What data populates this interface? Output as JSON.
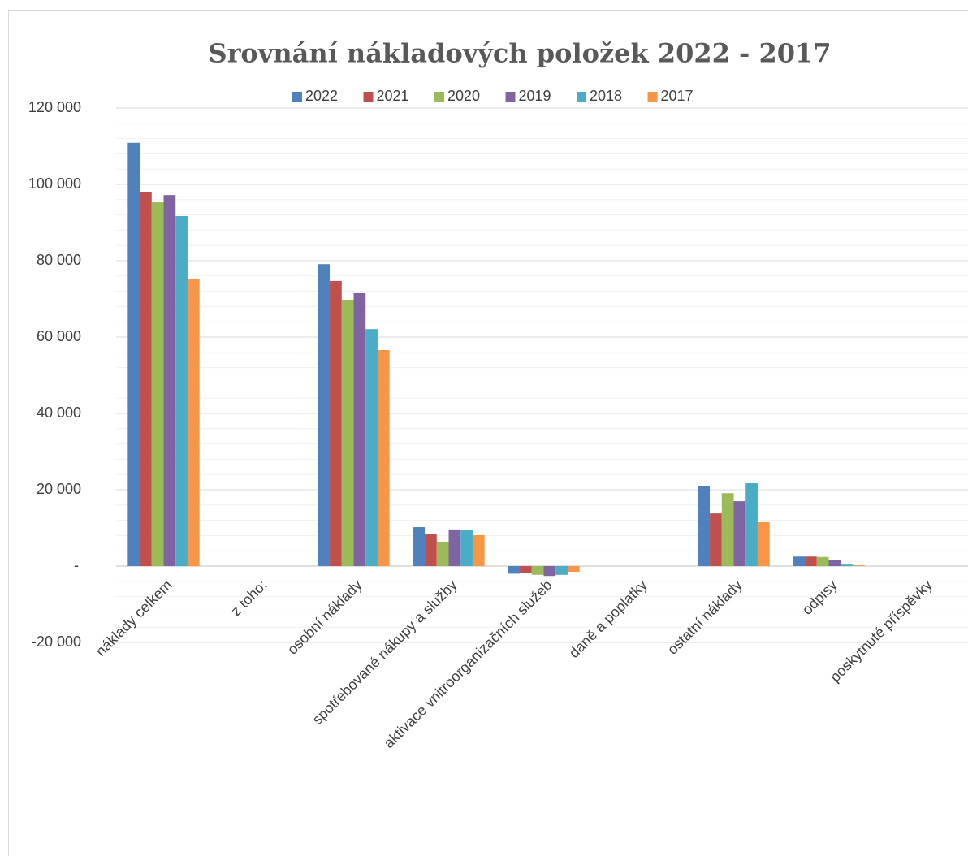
{
  "chart_data": {
    "type": "bar",
    "title": "Srovnání nákladových položek 2022 - 2017",
    "categories": [
      "náklady celkem",
      "z toho:",
      "osobní náklady",
      "spotřebované nákupy a služby",
      "aktivace vnitroorganizačních služeb",
      "daně a poplatky",
      "ostatní náklady",
      "odpisy",
      "poskytnuté příspěvky"
    ],
    "series": [
      {
        "name": "2022",
        "color": "#4f81bd",
        "values": [
          110900,
          null,
          79100,
          10200,
          -2000,
          0,
          20900,
          2500,
          0
        ]
      },
      {
        "name": "2021",
        "color": "#c0504d",
        "values": [
          97900,
          null,
          74700,
          8300,
          -1700,
          0,
          13800,
          2500,
          0
        ]
      },
      {
        "name": "2020",
        "color": "#9bbb59",
        "values": [
          95300,
          null,
          69600,
          6400,
          -2300,
          0,
          19100,
          2400,
          0
        ]
      },
      {
        "name": "2019",
        "color": "#8064a2",
        "values": [
          97200,
          null,
          71500,
          9600,
          -2600,
          0,
          17000,
          1600,
          0
        ]
      },
      {
        "name": "2018",
        "color": "#4bacc6",
        "values": [
          91700,
          null,
          62100,
          9400,
          -2300,
          0,
          21700,
          400,
          0
        ]
      },
      {
        "name": "2017",
        "color": "#f79646",
        "values": [
          75100,
          null,
          56600,
          8100,
          -1500,
          0,
          11500,
          200,
          0
        ]
      }
    ],
    "ylim": [
      -20000,
      120000
    ],
    "yticks": [
      {
        "value": -20000,
        "label": "-20 000"
      },
      {
        "value": 0,
        "label": "-"
      },
      {
        "value": 20000,
        "label": "20 000"
      },
      {
        "value": 40000,
        "label": "40 000"
      },
      {
        "value": 60000,
        "label": "60 000"
      },
      {
        "value": 80000,
        "label": "80 000"
      },
      {
        "value": 100000,
        "label": "100 000"
      },
      {
        "value": 120000,
        "label": "120 000"
      }
    ],
    "minor_yticks": [
      -16000,
      -12000,
      -8000,
      -4000,
      4000,
      8000,
      12000,
      16000,
      24000,
      28000,
      32000,
      36000,
      44000,
      48000,
      52000,
      56000,
      64000,
      68000,
      72000,
      76000,
      84000,
      88000,
      92000,
      96000,
      104000,
      108000,
      112000,
      116000
    ],
    "grid": true,
    "legend": "top"
  }
}
